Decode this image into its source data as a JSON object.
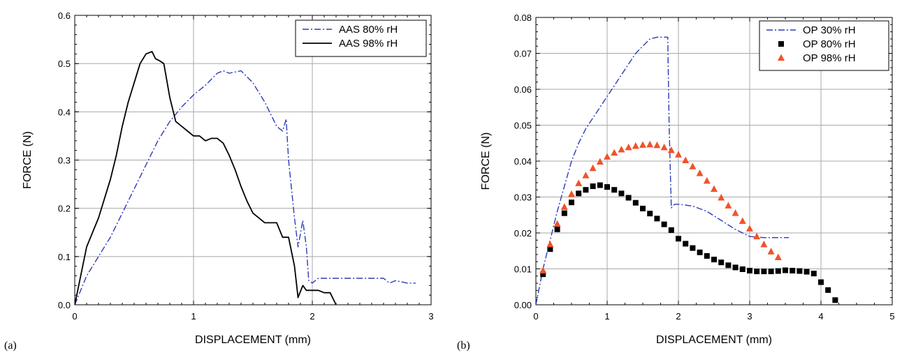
{
  "chart_data": [
    {
      "type": "line",
      "panel_label": "(a)",
      "xlabel": "DISPLACEMENT (mm)",
      "ylabel": "FORCE (N)",
      "xlim": [
        0,
        3
      ],
      "ylim": [
        0,
        0.6
      ],
      "x_ticks": [
        0,
        1,
        2,
        3
      ],
      "y_ticks": [
        0.0,
        0.1,
        0.2,
        0.3,
        0.4,
        0.5,
        0.6
      ],
      "x_tick_labels": [
        "0",
        "1",
        "2",
        "3"
      ],
      "y_tick_labels": [
        "0.0",
        "0.1",
        "0.2",
        "0.3",
        "0.4",
        "0.5",
        "0.6"
      ],
      "grid": true,
      "legend_position": "top-right",
      "series": [
        {
          "name": "AAS 80% rH",
          "style": "dash-dot",
          "color": "#2b3bb8",
          "x": [
            0,
            0.1,
            0.2,
            0.3,
            0.4,
            0.5,
            0.6,
            0.7,
            0.8,
            0.9,
            1.0,
            1.1,
            1.2,
            1.25,
            1.3,
            1.4,
            1.5,
            1.6,
            1.7,
            1.75,
            1.78,
            1.8,
            1.85,
            1.88,
            1.92,
            1.95,
            1.97,
            2.0,
            2.05,
            2.1,
            2.3,
            2.5,
            2.6,
            2.65,
            2.7,
            2.8,
            2.87
          ],
          "y": [
            0.0,
            0.06,
            0.1,
            0.14,
            0.19,
            0.24,
            0.29,
            0.34,
            0.38,
            0.41,
            0.435,
            0.455,
            0.48,
            0.485,
            0.48,
            0.485,
            0.46,
            0.42,
            0.37,
            0.36,
            0.385,
            0.3,
            0.18,
            0.12,
            0.175,
            0.12,
            0.05,
            0.045,
            0.055,
            0.055,
            0.055,
            0.055,
            0.055,
            0.045,
            0.05,
            0.045,
            0.045
          ]
        },
        {
          "name": "AAS 98% rH",
          "style": "solid",
          "color": "#000000",
          "x": [
            0,
            0.1,
            0.2,
            0.3,
            0.35,
            0.4,
            0.45,
            0.5,
            0.55,
            0.6,
            0.65,
            0.68,
            0.72,
            0.75,
            0.8,
            0.85,
            0.9,
            0.95,
            1.0,
            1.05,
            1.1,
            1.15,
            1.2,
            1.25,
            1.3,
            1.35,
            1.4,
            1.45,
            1.5,
            1.6,
            1.7,
            1.75,
            1.8,
            1.85,
            1.88,
            1.92,
            1.95,
            2.0,
            2.05,
            2.1,
            2.15,
            2.2
          ],
          "y": [
            0.0,
            0.12,
            0.18,
            0.26,
            0.31,
            0.37,
            0.42,
            0.46,
            0.5,
            0.52,
            0.525,
            0.51,
            0.505,
            0.5,
            0.43,
            0.38,
            0.37,
            0.36,
            0.35,
            0.35,
            0.34,
            0.345,
            0.345,
            0.335,
            0.31,
            0.28,
            0.245,
            0.215,
            0.19,
            0.17,
            0.17,
            0.14,
            0.14,
            0.08,
            0.015,
            0.04,
            0.03,
            0.03,
            0.03,
            0.025,
            0.025,
            0.0
          ]
        }
      ]
    },
    {
      "type": "line",
      "panel_label": "(b)",
      "xlabel": "DISPLACEMENT (mm)",
      "ylabel": "FORCE (N)",
      "xlim": [
        0,
        5
      ],
      "ylim": [
        0,
        0.08
      ],
      "x_ticks": [
        0,
        1,
        2,
        3,
        4,
        5
      ],
      "y_ticks": [
        0.0,
        0.01,
        0.02,
        0.03,
        0.04,
        0.05,
        0.06,
        0.07,
        0.08
      ],
      "x_tick_labels": [
        "0",
        "1",
        "2",
        "3",
        "4",
        "5"
      ],
      "y_tick_labels": [
        "0.00",
        "0.01",
        "0.02",
        "0.03",
        "0.04",
        "0.05",
        "0.06",
        "0.07",
        "0.08"
      ],
      "grid": true,
      "legend_position": "top-right",
      "series": [
        {
          "name": "OP 30% rH",
          "style": "dash-dot",
          "color": "#2b3bb8",
          "x": [
            0,
            0.1,
            0.2,
            0.3,
            0.4,
            0.5,
            0.6,
            0.7,
            0.8,
            0.9,
            1.0,
            1.1,
            1.2,
            1.3,
            1.4,
            1.5,
            1.6,
            1.7,
            1.8,
            1.85,
            1.87,
            1.9,
            1.95,
            2.0,
            2.2,
            2.4,
            2.6,
            2.8,
            3.0,
            3.2,
            3.4,
            3.55
          ],
          "y": [
            0.0,
            0.01,
            0.018,
            0.026,
            0.033,
            0.04,
            0.045,
            0.049,
            0.052,
            0.055,
            0.058,
            0.061,
            0.064,
            0.067,
            0.07,
            0.072,
            0.074,
            0.0745,
            0.0745,
            0.0745,
            0.05,
            0.027,
            0.028,
            0.028,
            0.0275,
            0.026,
            0.0235,
            0.021,
            0.019,
            0.0187,
            0.0187,
            0.0187
          ]
        },
        {
          "name": "OP 80% rH",
          "style": "square",
          "color": "#000000",
          "x": [
            0.1,
            0.2,
            0.3,
            0.4,
            0.5,
            0.6,
            0.7,
            0.8,
            0.9,
            1.0,
            1.1,
            1.2,
            1.3,
            1.4,
            1.5,
            1.6,
            1.7,
            1.8,
            1.9,
            2.0,
            2.1,
            2.2,
            2.3,
            2.4,
            2.5,
            2.6,
            2.7,
            2.8,
            2.9,
            3.0,
            3.1,
            3.2,
            3.3,
            3.4,
            3.5,
            3.6,
            3.7,
            3.8,
            3.9,
            4.0,
            4.1,
            4.2
          ],
          "y": [
            0.0085,
            0.0155,
            0.021,
            0.0255,
            0.0285,
            0.031,
            0.032,
            0.033,
            0.0333,
            0.0328,
            0.032,
            0.031,
            0.0298,
            0.0284,
            0.0268,
            0.0254,
            0.024,
            0.0224,
            0.0208,
            0.0184,
            0.017,
            0.0158,
            0.0146,
            0.0136,
            0.0126,
            0.0118,
            0.011,
            0.0104,
            0.0099,
            0.0095,
            0.0093,
            0.0093,
            0.0093,
            0.0094,
            0.0096,
            0.0095,
            0.0094,
            0.0092,
            0.0087,
            0.0063,
            0.0041,
            0.0013
          ]
        },
        {
          "name": "OP 98% rH",
          "style": "triangle",
          "color": "#f0532b",
          "x": [
            0.1,
            0.2,
            0.3,
            0.4,
            0.5,
            0.6,
            0.7,
            0.8,
            0.9,
            1.0,
            1.1,
            1.2,
            1.3,
            1.4,
            1.5,
            1.6,
            1.7,
            1.8,
            1.9,
            2.0,
            2.1,
            2.2,
            2.3,
            2.4,
            2.5,
            2.6,
            2.7,
            2.8,
            2.9,
            3.0,
            3.1,
            3.2,
            3.3,
            3.4
          ],
          "y": [
            0.0095,
            0.0168,
            0.0225,
            0.0272,
            0.0308,
            0.0338,
            0.036,
            0.038,
            0.0398,
            0.0412,
            0.0423,
            0.0432,
            0.0438,
            0.0442,
            0.0445,
            0.0446,
            0.0444,
            0.0438,
            0.043,
            0.0418,
            0.0402,
            0.0385,
            0.0366,
            0.0345,
            0.0322,
            0.0298,
            0.0276,
            0.0255,
            0.0233,
            0.0212,
            0.019,
            0.0168,
            0.0148,
            0.0132
          ]
        }
      ]
    }
  ]
}
